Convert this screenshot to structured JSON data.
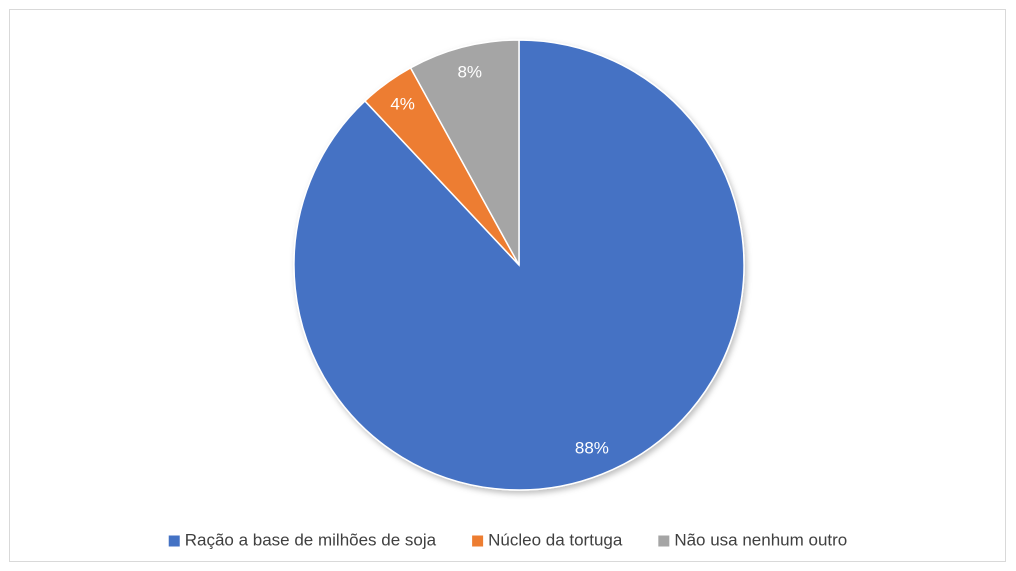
{
  "chart_data": {
    "type": "pie",
    "categories": [
      "Ração a base de milhões de soja",
      "Núcleo da tortuga",
      "Não usa nenhum outro"
    ],
    "values": [
      88,
      4,
      8
    ],
    "value_labels": [
      "88%",
      "4%",
      "8%"
    ],
    "colors": [
      "#4472c4",
      "#ed7d31",
      "#a5a5a5"
    ],
    "legend": "bottom"
  }
}
